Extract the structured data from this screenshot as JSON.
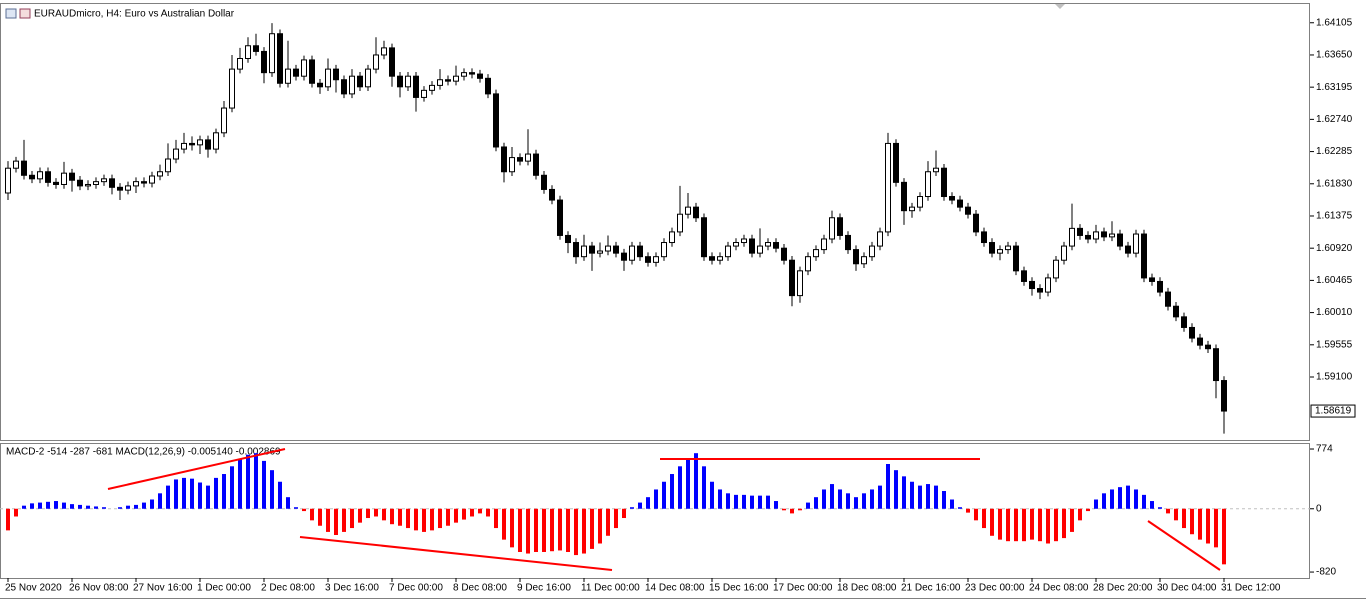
{
  "chart_data": [
    {
      "type": "candlestick",
      "title": "EURAUDmicro, H4:  Euro vs Australian Dollar",
      "open": [
        1.617,
        1.6205,
        1.6215,
        1.6195,
        1.619,
        1.62,
        1.6185,
        1.6182,
        1.6198,
        1.6188,
        1.618,
        1.6182,
        1.6186,
        1.619,
        1.6178,
        1.6174,
        1.618,
        1.6186,
        1.6184,
        1.6194,
        1.62,
        1.6218,
        1.6232,
        1.624,
        1.6238,
        1.6245,
        1.6232,
        1.6255,
        1.629,
        1.6345,
        1.636,
        1.6378,
        1.637,
        1.634,
        1.6395,
        1.6325,
        1.6345,
        1.6335,
        1.6358,
        1.6325,
        1.632,
        1.6345,
        1.633,
        1.631,
        1.6335,
        1.632,
        1.6345,
        1.6365,
        1.6375,
        1.6335,
        1.632,
        1.6335,
        1.6305,
        1.6315,
        1.6322,
        1.633,
        1.6328,
        1.6335,
        1.634,
        1.6338,
        1.6332,
        1.631,
        1.6235,
        1.62,
        1.622,
        1.6215,
        1.6225,
        1.6195,
        1.6175,
        1.616,
        1.611,
        1.61,
        1.608,
        1.6095,
        1.6085,
        1.6088,
        1.6095,
        1.6085,
        1.6075,
        1.6095,
        1.608,
        1.6072,
        1.608,
        1.61,
        1.6115,
        1.614,
        1.615,
        1.6135,
        1.608,
        1.6075,
        1.608,
        1.6095,
        1.61,
        1.6105,
        1.6085,
        1.6095,
        1.61,
        1.6092,
        1.6075,
        1.6025,
        1.606,
        1.608,
        1.609,
        1.6105,
        1.6135,
        1.611,
        1.609,
        1.607,
        1.608,
        1.6095,
        1.6115,
        1.624,
        1.6185,
        1.6145,
        1.615,
        1.6165,
        1.62,
        1.6205,
        1.6165,
        1.616,
        1.615,
        1.614,
        1.6115,
        1.61,
        1.6085,
        1.609,
        1.6095,
        1.606,
        1.6045,
        1.6035,
        1.603,
        1.605,
        1.6075,
        1.6095,
        1.612,
        1.611,
        1.6105,
        1.6115,
        1.6108,
        1.6112,
        1.6095,
        1.6085,
        1.6112,
        1.605,
        1.6045,
        1.603,
        1.601,
        1.5995,
        1.598,
        1.5965,
        1.5955,
        1.595,
        1.5905
      ],
      "high": [
        1.6215,
        1.6221,
        1.6245,
        1.6201,
        1.6206,
        1.6206,
        1.6191,
        1.6214,
        1.6204,
        1.6194,
        1.6188,
        1.6192,
        1.6196,
        1.6196,
        1.6184,
        1.6186,
        1.6192,
        1.6192,
        1.62,
        1.621,
        1.624,
        1.6245,
        1.6255,
        1.625,
        1.6251,
        1.6251,
        1.6261,
        1.63,
        1.6365,
        1.6375,
        1.639,
        1.6395,
        1.6376,
        1.641,
        1.6401,
        1.6385,
        1.6351,
        1.6364,
        1.6364,
        1.6331,
        1.636,
        1.6351,
        1.6336,
        1.6345,
        1.6341,
        1.6351,
        1.639,
        1.6385,
        1.6381,
        1.6341,
        1.6341,
        1.6341,
        1.6321,
        1.6328,
        1.6345,
        1.6336,
        1.635,
        1.6346,
        1.6346,
        1.6344,
        1.6338,
        1.6316,
        1.6241,
        1.6235,
        1.6226,
        1.626,
        1.6231,
        1.6201,
        1.6181,
        1.6166,
        1.6116,
        1.6106,
        1.6111,
        1.6101,
        1.61,
        1.611,
        1.6101,
        1.6091,
        1.6101,
        1.6101,
        1.6086,
        1.6086,
        1.6106,
        1.6121,
        1.618,
        1.617,
        1.6156,
        1.6141,
        1.6086,
        1.6086,
        1.6101,
        1.6106,
        1.6111,
        1.6111,
        1.612,
        1.6106,
        1.6106,
        1.6098,
        1.6081,
        1.6066,
        1.6086,
        1.6096,
        1.6111,
        1.6145,
        1.6141,
        1.6116,
        1.6096,
        1.6086,
        1.6101,
        1.6121,
        1.6255,
        1.6246,
        1.6191,
        1.6156,
        1.6171,
        1.6215,
        1.623,
        1.6211,
        1.6171,
        1.6166,
        1.6156,
        1.6146,
        1.6121,
        1.6106,
        1.6096,
        1.6101,
        1.6101,
        1.6066,
        1.6051,
        1.6041,
        1.6056,
        1.6081,
        1.6101,
        1.6155,
        1.6126,
        1.6116,
        1.6125,
        1.6121,
        1.613,
        1.6118,
        1.6101,
        1.6118,
        1.6118,
        1.6056,
        1.6051,
        1.6036,
        1.6016,
        1.6001,
        1.5986,
        1.5971,
        1.5961,
        1.5956,
        1.5911
      ],
      "low": [
        1.616,
        1.6199,
        1.6189,
        1.6184,
        1.6184,
        1.6179,
        1.6176,
        1.6176,
        1.6172,
        1.6174,
        1.6174,
        1.6176,
        1.618,
        1.6168,
        1.616,
        1.6168,
        1.617,
        1.6178,
        1.6178,
        1.6188,
        1.6194,
        1.6212,
        1.6226,
        1.623,
        1.6225,
        1.622,
        1.6226,
        1.6249,
        1.6284,
        1.6339,
        1.6354,
        1.6364,
        1.6325,
        1.6334,
        1.6319,
        1.6319,
        1.6329,
        1.6329,
        1.6319,
        1.631,
        1.6314,
        1.6312,
        1.6304,
        1.6304,
        1.6314,
        1.6314,
        1.6339,
        1.6359,
        1.632,
        1.6305,
        1.6314,
        1.6285,
        1.6299,
        1.6309,
        1.6316,
        1.6322,
        1.6322,
        1.6329,
        1.6332,
        1.6326,
        1.6304,
        1.6229,
        1.6185,
        1.6194,
        1.6209,
        1.6209,
        1.6189,
        1.6169,
        1.6154,
        1.6104,
        1.6085,
        1.607,
        1.6074,
        1.606,
        1.6079,
        1.6082,
        1.6079,
        1.606,
        1.6069,
        1.6074,
        1.6066,
        1.6066,
        1.6074,
        1.6094,
        1.6109,
        1.6134,
        1.6129,
        1.6074,
        1.6069,
        1.6069,
        1.6074,
        1.6089,
        1.6094,
        1.6079,
        1.6079,
        1.6089,
        1.6086,
        1.6069,
        1.601,
        1.6015,
        1.6054,
        1.6074,
        1.6084,
        1.6099,
        1.6104,
        1.6084,
        1.606,
        1.6064,
        1.6074,
        1.6089,
        1.6109,
        1.6179,
        1.6125,
        1.6135,
        1.6144,
        1.6159,
        1.6194,
        1.6159,
        1.6154,
        1.6144,
        1.6134,
        1.6109,
        1.6094,
        1.6079,
        1.6075,
        1.6084,
        1.6054,
        1.6039,
        1.6025,
        1.602,
        1.6024,
        1.6044,
        1.6069,
        1.6089,
        1.6104,
        1.6099,
        1.6099,
        1.6102,
        1.6102,
        1.6089,
        1.6079,
        1.6079,
        1.6044,
        1.6039,
        1.6024,
        1.6004,
        1.5989,
        1.5974,
        1.5959,
        1.5949,
        1.5944,
        1.588,
        1.583
      ],
      "close": [
        1.6205,
        1.6215,
        1.6195,
        1.619,
        1.62,
        1.6185,
        1.6182,
        1.6198,
        1.6188,
        1.618,
        1.6182,
        1.6186,
        1.619,
        1.6178,
        1.6174,
        1.618,
        1.6186,
        1.6184,
        1.6194,
        1.62,
        1.6218,
        1.6232,
        1.624,
        1.6238,
        1.6245,
        1.6232,
        1.6255,
        1.629,
        1.6345,
        1.636,
        1.6378,
        1.637,
        1.634,
        1.6395,
        1.6325,
        1.6345,
        1.6335,
        1.6358,
        1.6325,
        1.632,
        1.6345,
        1.633,
        1.631,
        1.6335,
        1.632,
        1.6345,
        1.6365,
        1.6375,
        1.6335,
        1.632,
        1.6335,
        1.6305,
        1.6315,
        1.6322,
        1.633,
        1.6328,
        1.6335,
        1.634,
        1.6338,
        1.6332,
        1.631,
        1.6235,
        1.62,
        1.622,
        1.6215,
        1.6225,
        1.6195,
        1.6175,
        1.616,
        1.611,
        1.61,
        1.608,
        1.6095,
        1.6085,
        1.6088,
        1.6095,
        1.6085,
        1.6075,
        1.6095,
        1.608,
        1.6072,
        1.608,
        1.61,
        1.6115,
        1.614,
        1.615,
        1.6135,
        1.608,
        1.6075,
        1.608,
        1.6095,
        1.61,
        1.6105,
        1.6085,
        1.6095,
        1.61,
        1.6092,
        1.6075,
        1.6025,
        1.606,
        1.608,
        1.609,
        1.6105,
        1.6135,
        1.611,
        1.609,
        1.607,
        1.608,
        1.6095,
        1.6115,
        1.624,
        1.6185,
        1.6145,
        1.615,
        1.6165,
        1.62,
        1.6205,
        1.6165,
        1.616,
        1.615,
        1.614,
        1.6115,
        1.61,
        1.6085,
        1.609,
        1.6095,
        1.606,
        1.6045,
        1.6035,
        1.603,
        1.605,
        1.6075,
        1.6095,
        1.612,
        1.611,
        1.6105,
        1.6115,
        1.6108,
        1.6112,
        1.6095,
        1.6085,
        1.6112,
        1.605,
        1.6045,
        1.603,
        1.601,
        1.5995,
        1.598,
        1.5965,
        1.5955,
        1.595,
        1.5905,
        1.58619
      ],
      "ylim": [
        1.5821,
        1.6437
      ],
      "yticks": [
        1.64105,
        {
          "value": 1.6365,
          "label": "1.63650"
        },
        1.63195,
        {
          "value": 1.6274,
          "label": "1.62740"
        },
        1.62285,
        {
          "value": 1.6183,
          "label": "1.61830"
        },
        1.61375,
        {
          "value": 1.6092,
          "label": "1.60920"
        },
        1.60465,
        {
          "value": 1.6001,
          "label": "1.60010"
        },
        1.59555,
        {
          "value": 1.591,
          "label": "1.59100"
        }
      ],
      "current_price": 1.58619,
      "up_color": "#ffffff",
      "down_color": "#000000"
    },
    {
      "type": "bar",
      "title": "MACD-2 -514 -287 -681 MACD(12,26,9) -0.005140 -0.002869",
      "categories": [
        "25 Nov 2020",
        null,
        null,
        null,
        null,
        null,
        null,
        null,
        "26 Nov 08:00",
        null,
        null,
        null,
        null,
        null,
        null,
        null,
        "27 Nov 16:00",
        null,
        null,
        null,
        null,
        null,
        null,
        null,
        "1 Dec 00:00",
        null,
        null,
        null,
        null,
        null,
        null,
        null,
        "2 Dec 08:00",
        null,
        null,
        null,
        null,
        null,
        null,
        null,
        "3 Dec 16:00",
        null,
        null,
        null,
        null,
        null,
        null,
        null,
        "7 Dec 00:00",
        null,
        null,
        null,
        null,
        null,
        null,
        null,
        "8 Dec 08:00",
        null,
        null,
        null,
        null,
        null,
        null,
        null,
        "9 Dec 16:00",
        null,
        null,
        null,
        null,
        null,
        null,
        null,
        "11 Dec 00:00",
        null,
        null,
        null,
        null,
        null,
        null,
        null,
        "14 Dec 08:00",
        null,
        null,
        null,
        null,
        null,
        null,
        null,
        "15 Dec 16:00",
        null,
        null,
        null,
        null,
        null,
        null,
        null,
        "17 Dec 00:00",
        null,
        null,
        null,
        null,
        null,
        null,
        null,
        "18 Dec 08:00",
        null,
        null,
        null,
        null,
        null,
        null,
        null,
        "21 Dec 16:00",
        null,
        null,
        null,
        null,
        null,
        null,
        null,
        "23 Dec 00:00",
        null,
        null,
        null,
        null,
        null,
        null,
        null,
        "24 Dec 08:00",
        null,
        null,
        null,
        null,
        null,
        null,
        null,
        "28 Dec 20:00",
        null,
        null,
        null,
        null,
        null,
        null,
        null,
        "30 Dec 04:00",
        null,
        null,
        null,
        null,
        null,
        null,
        null,
        "31 Dec 12:00"
      ],
      "values": [
        -280,
        -100,
        40,
        70,
        80,
        90,
        100,
        80,
        60,
        50,
        40,
        30,
        20,
        0,
        20,
        40,
        50,
        80,
        120,
        200,
        300,
        380,
        400,
        390,
        340,
        300,
        400,
        450,
        550,
        650,
        700,
        720,
        620,
        500,
        350,
        150,
        20,
        -30,
        -150,
        -220,
        -300,
        -340,
        -300,
        -250,
        -180,
        -120,
        -100,
        -150,
        -200,
        -220,
        -250,
        -280,
        -300,
        -280,
        -250,
        -220,
        -180,
        -140,
        -100,
        -60,
        -100,
        -250,
        -400,
        -500,
        -560,
        -580,
        -560,
        -560,
        -550,
        -540,
        -560,
        -600,
        -580,
        -520,
        -450,
        -350,
        -250,
        -120,
        20,
        80,
        150,
        250,
        350,
        450,
        550,
        650,
        720,
        550,
        350,
        250,
        200,
        180,
        180,
        170,
        170,
        170,
        100,
        -20,
        -60,
        -20,
        80,
        150,
        250,
        320,
        250,
        200,
        150,
        200,
        250,
        300,
        580,
        500,
        420,
        350,
        300,
        320,
        300,
        230,
        120,
        20,
        -50,
        -150,
        -250,
        -350,
        -400,
        -420,
        -420,
        -420,
        -400,
        -420,
        -450,
        -420,
        -380,
        -300,
        -150,
        -30,
        120,
        200,
        250,
        280,
        300,
        250,
        180,
        100,
        20,
        -60,
        -150,
        -250,
        -330,
        -400,
        -450,
        -500,
        -720
      ],
      "ylim": [
        -897,
        839
      ],
      "yticks": [
        774,
        0,
        -820
      ],
      "positive_color": "#0000ff",
      "negative_color": "#ff0000"
    }
  ]
}
